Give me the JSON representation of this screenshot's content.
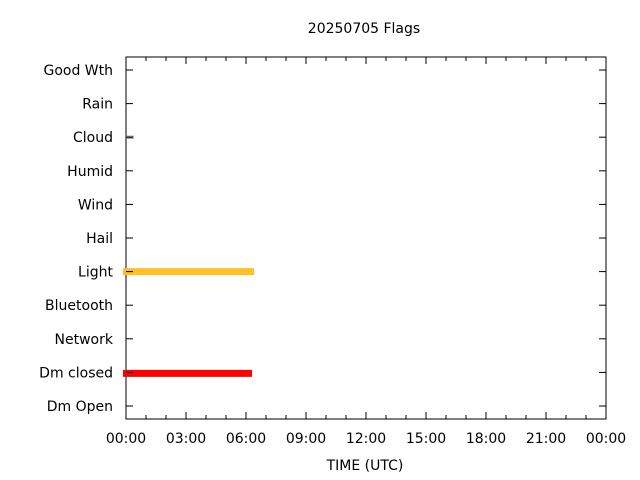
{
  "chart_data": {
    "type": "bar",
    "title": "20250705 Flags",
    "xlabel": "TIME (UTC)",
    "ylabel": "",
    "categories": [
      "Good Wth",
      "Rain",
      "Cloud",
      "Humid",
      "Wind",
      "Hail",
      "Light",
      "Bluetooth",
      "Network",
      "Dm closed",
      "Dm Open"
    ],
    "x_ticks": [
      "00:00",
      "03:00",
      "06:00",
      "09:00",
      "12:00",
      "15:00",
      "18:00",
      "21:00",
      "00:00"
    ],
    "xlim_hours": [
      0,
      24
    ],
    "series": [
      {
        "category": "Light",
        "start_hour": 0,
        "end_hour": 6.4,
        "color": "#ffc125"
      },
      {
        "category": "Dm closed",
        "start_hour": 0,
        "end_hour": 6.3,
        "color": "#ff0000"
      },
      {
        "category": "Cloud",
        "start_hour": 0,
        "end_hour": 0.4,
        "color": "#808080"
      }
    ],
    "grid": false,
    "legend": "none"
  }
}
